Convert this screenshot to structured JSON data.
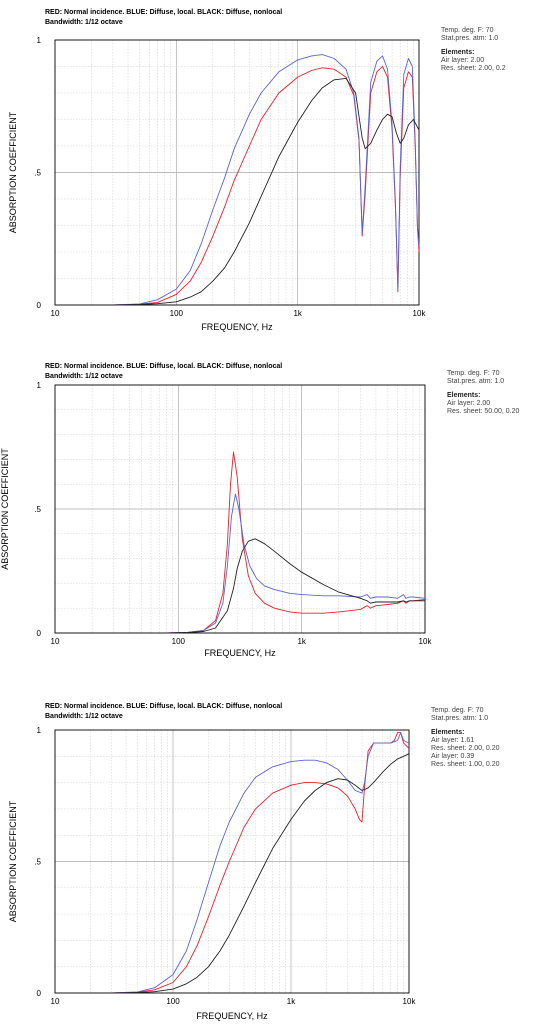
{
  "chart_data": [
    {
      "type": "line",
      "header_line1": "RED: Normal incidence. BLUE: Diffuse, local. BLACK: Diffuse, nonlocal",
      "header_line2": "Bandwidth: 1/12 octave",
      "xlabel": "FREQUENCY, Hz",
      "ylabel": "ABSORPTION COEFFICIENT",
      "xscale": "log",
      "xlim": [
        10,
        10000
      ],
      "ylim": [
        0,
        1
      ],
      "x_ticks": [
        {
          "value": 10,
          "label": "10"
        },
        {
          "value": 100,
          "label": "100"
        },
        {
          "value": 1000,
          "label": "1k"
        },
        {
          "value": 10000,
          "label": "10k"
        }
      ],
      "y_ticks": [
        {
          "value": 0,
          "label": "0"
        },
        {
          "value": 0.5,
          "label": ".5"
        },
        {
          "value": 1,
          "label": "1"
        }
      ],
      "grid": true,
      "side_info": {
        "temp": "Temp. deg. F: 70",
        "pressure": "Stat.pres. atm: 1.0",
        "elements_title": "Elements:",
        "elements": [
          "Air layer:  2.00",
          "Res. sheet:  2.00, 0.2"
        ]
      },
      "series": [
        {
          "color": "#e8202a",
          "x": [
            30,
            50,
            70,
            100,
            130,
            160,
            200,
            250,
            300,
            400,
            500,
            700,
            1000,
            1300,
            1600,
            2000,
            2500,
            2900,
            3200,
            3400,
            3600,
            4000,
            4500,
            5000,
            5500,
            6000,
            6400,
            6700,
            7000,
            7500,
            8200,
            8800,
            9300,
            9700,
            10000
          ],
          "y": [
            0,
            0.003,
            0.01,
            0.04,
            0.09,
            0.16,
            0.26,
            0.37,
            0.47,
            0.6,
            0.7,
            0.8,
            0.86,
            0.885,
            0.895,
            0.89,
            0.86,
            0.79,
            0.62,
            0.26,
            0.42,
            0.8,
            0.88,
            0.9,
            0.86,
            0.66,
            0.36,
            0.05,
            0.48,
            0.82,
            0.88,
            0.86,
            0.6,
            0.3,
            0.2
          ]
        },
        {
          "color": "#5b63d8",
          "x": [
            30,
            50,
            70,
            100,
            130,
            160,
            200,
            250,
            300,
            400,
            500,
            700,
            1000,
            1300,
            1600,
            2000,
            2500,
            2900,
            3200,
            3400,
            3600,
            4000,
            4500,
            5000,
            5500,
            6000,
            6400,
            6700,
            7000,
            7500,
            8200,
            8800,
            9300,
            9700,
            10000
          ],
          "y": [
            0,
            0.004,
            0.02,
            0.06,
            0.13,
            0.23,
            0.36,
            0.48,
            0.59,
            0.72,
            0.8,
            0.88,
            0.925,
            0.94,
            0.945,
            0.93,
            0.89,
            0.8,
            0.63,
            0.27,
            0.45,
            0.84,
            0.92,
            0.94,
            0.89,
            0.68,
            0.38,
            0.06,
            0.52,
            0.87,
            0.93,
            0.9,
            0.62,
            0.3,
            0.22
          ]
        },
        {
          "color": "#222222",
          "x": [
            30,
            50,
            70,
            100,
            130,
            160,
            200,
            250,
            300,
            400,
            500,
            700,
            1000,
            1300,
            1600,
            2000,
            2500,
            3000,
            3400,
            3600,
            4000,
            4500,
            5000,
            5500,
            6000,
            6500,
            7000,
            7500,
            8200,
            9000,
            10000
          ],
          "y": [
            0,
            0.002,
            0.005,
            0.012,
            0.03,
            0.05,
            0.09,
            0.14,
            0.2,
            0.31,
            0.41,
            0.56,
            0.69,
            0.77,
            0.82,
            0.85,
            0.855,
            0.8,
            0.63,
            0.59,
            0.61,
            0.66,
            0.7,
            0.72,
            0.71,
            0.65,
            0.61,
            0.63,
            0.68,
            0.7,
            0.66
          ]
        }
      ]
    },
    {
      "type": "line",
      "header_line1": "RED: Normal incidence. BLUE: Diffuse, local. BLACK: Diffuse, nonlocal",
      "header_line2": "Bandwidth: 1/12 octave",
      "xlabel": "FREQUENCY, Hz",
      "ylabel": "ABSORPTION COEFFICIENT",
      "xscale": "log",
      "xlim": [
        10,
        10000
      ],
      "ylim": [
        0,
        1
      ],
      "x_ticks": [
        {
          "value": 10,
          "label": "10"
        },
        {
          "value": 100,
          "label": "100"
        },
        {
          "value": 1000,
          "label": "1k"
        },
        {
          "value": 10000,
          "label": "10k"
        }
      ],
      "y_ticks": [
        {
          "value": 0,
          "label": "0"
        },
        {
          "value": 0.5,
          "label": ".5"
        },
        {
          "value": 1,
          "label": "1"
        }
      ],
      "grid": true,
      "side_info": {
        "temp": "Temp. deg. F: 70",
        "pressure": "Stat.pres. atm: 1.0",
        "elements_title": "Elements:",
        "elements": [
          "Air layer:  2.00",
          "Res. sheet:  50.00, 0.20"
        ]
      },
      "series": [
        {
          "color": "#e8202a",
          "x": [
            80,
            120,
            160,
            200,
            230,
            250,
            265,
            280,
            300,
            330,
            370,
            420,
            500,
            600,
            800,
            1000,
            1500,
            2000,
            3000,
            3400,
            3600,
            4000,
            5000,
            6000,
            6700,
            7000,
            7500,
            8000,
            10000
          ],
          "y": [
            0,
            0.003,
            0.01,
            0.05,
            0.16,
            0.36,
            0.6,
            0.73,
            0.63,
            0.38,
            0.23,
            0.16,
            0.12,
            0.1,
            0.085,
            0.08,
            0.08,
            0.085,
            0.095,
            0.11,
            0.1,
            0.11,
            0.115,
            0.12,
            0.13,
            0.12,
            0.13,
            0.13,
            0.135
          ]
        },
        {
          "color": "#5b63d8",
          "x": [
            80,
            120,
            160,
            200,
            230,
            250,
            270,
            290,
            310,
            340,
            380,
            430,
            500,
            600,
            800,
            1000,
            1500,
            2000,
            3000,
            3400,
            3600,
            4000,
            5000,
            6000,
            6700,
            7000,
            7500,
            8000,
            10000
          ],
          "y": [
            0,
            0.003,
            0.01,
            0.04,
            0.12,
            0.27,
            0.47,
            0.56,
            0.5,
            0.36,
            0.27,
            0.22,
            0.19,
            0.175,
            0.16,
            0.155,
            0.15,
            0.15,
            0.145,
            0.155,
            0.14,
            0.145,
            0.145,
            0.14,
            0.155,
            0.14,
            0.145,
            0.145,
            0.14
          ]
        },
        {
          "color": "#222222",
          "x": [
            80,
            120,
            160,
            200,
            250,
            280,
            300,
            330,
            370,
            420,
            500,
            600,
            800,
            1000,
            1500,
            2000,
            3000,
            3400,
            3600,
            4000,
            5000,
            6000,
            6700,
            7000,
            7500,
            8000,
            10000
          ],
          "y": [
            0,
            0.002,
            0.006,
            0.02,
            0.09,
            0.18,
            0.26,
            0.33,
            0.37,
            0.38,
            0.36,
            0.33,
            0.28,
            0.245,
            0.195,
            0.165,
            0.14,
            0.13,
            0.12,
            0.125,
            0.125,
            0.125,
            0.13,
            0.125,
            0.13,
            0.13,
            0.13
          ]
        }
      ]
    },
    {
      "type": "line",
      "header_line1": "RED: Normal incidence. BLUE: Diffuse, local. BLACK: Diffuse, nonlocal",
      "header_line2": "Bandwidth: 1/12 octave",
      "xlabel": "FREQUENCY, Hz",
      "ylabel": "ABSORPTION COEFFICIENT",
      "xscale": "log",
      "xlim": [
        10,
        10000
      ],
      "ylim": [
        0,
        1
      ],
      "x_ticks": [
        {
          "value": 10,
          "label": "10"
        },
        {
          "value": 100,
          "label": "100"
        },
        {
          "value": 1000,
          "label": "1k"
        },
        {
          "value": 10000,
          "label": "10k"
        }
      ],
      "y_ticks": [
        {
          "value": 0,
          "label": "0"
        },
        {
          "value": 0.5,
          "label": ".5"
        },
        {
          "value": 1,
          "label": "1"
        }
      ],
      "grid": true,
      "side_info": {
        "temp": "Temp. deg. F: 70",
        "pressure": "Stat.pres. atm: 1.0",
        "elements_title": "Elements:",
        "elements": [
          "Air layer:  1.61",
          "Res. sheet:  2.00, 0.20",
          "Air layer:  0.39",
          "Res. sheet:  1.00, 0.20"
        ]
      },
      "series": [
        {
          "color": "#e8202a",
          "x": [
            30,
            50,
            70,
            100,
            130,
            160,
            200,
            250,
            300,
            400,
            500,
            700,
            1000,
            1300,
            1600,
            2000,
            2500,
            3000,
            3500,
            3800,
            4000,
            4200,
            4500,
            5000,
            6000,
            7000,
            7500,
            8000,
            8500,
            9000,
            10000
          ],
          "y": [
            0,
            0.003,
            0.012,
            0.04,
            0.1,
            0.18,
            0.29,
            0.41,
            0.5,
            0.63,
            0.7,
            0.76,
            0.79,
            0.8,
            0.8,
            0.795,
            0.78,
            0.75,
            0.7,
            0.66,
            0.65,
            0.78,
            0.92,
            0.95,
            0.95,
            0.95,
            0.96,
            0.99,
            0.99,
            0.95,
            0.93
          ]
        },
        {
          "color": "#5b63d8",
          "x": [
            30,
            50,
            70,
            100,
            130,
            160,
            200,
            250,
            300,
            400,
            500,
            700,
            1000,
            1300,
            1600,
            2000,
            2500,
            3000,
            3500,
            4000,
            4200,
            4500,
            5000,
            6000,
            7000,
            8000,
            8500,
            9000,
            10000
          ],
          "y": [
            0,
            0.004,
            0.02,
            0.07,
            0.16,
            0.28,
            0.42,
            0.56,
            0.65,
            0.76,
            0.82,
            0.86,
            0.88,
            0.885,
            0.885,
            0.875,
            0.85,
            0.81,
            0.77,
            0.76,
            0.8,
            0.9,
            0.95,
            0.95,
            0.95,
            0.96,
            0.99,
            0.96,
            0.95
          ]
        },
        {
          "color": "#222222",
          "x": [
            30,
            50,
            70,
            100,
            130,
            160,
            200,
            250,
            300,
            400,
            500,
            700,
            1000,
            1300,
            1600,
            2000,
            2500,
            3000,
            3500,
            4000,
            4500,
            5000,
            6000,
            7000,
            8000,
            9000,
            10000
          ],
          "y": [
            0,
            0.002,
            0.005,
            0.015,
            0.035,
            0.06,
            0.1,
            0.16,
            0.22,
            0.33,
            0.42,
            0.55,
            0.66,
            0.73,
            0.77,
            0.8,
            0.815,
            0.81,
            0.79,
            0.77,
            0.78,
            0.8,
            0.84,
            0.87,
            0.89,
            0.9,
            0.91
          ]
        }
      ]
    }
  ]
}
